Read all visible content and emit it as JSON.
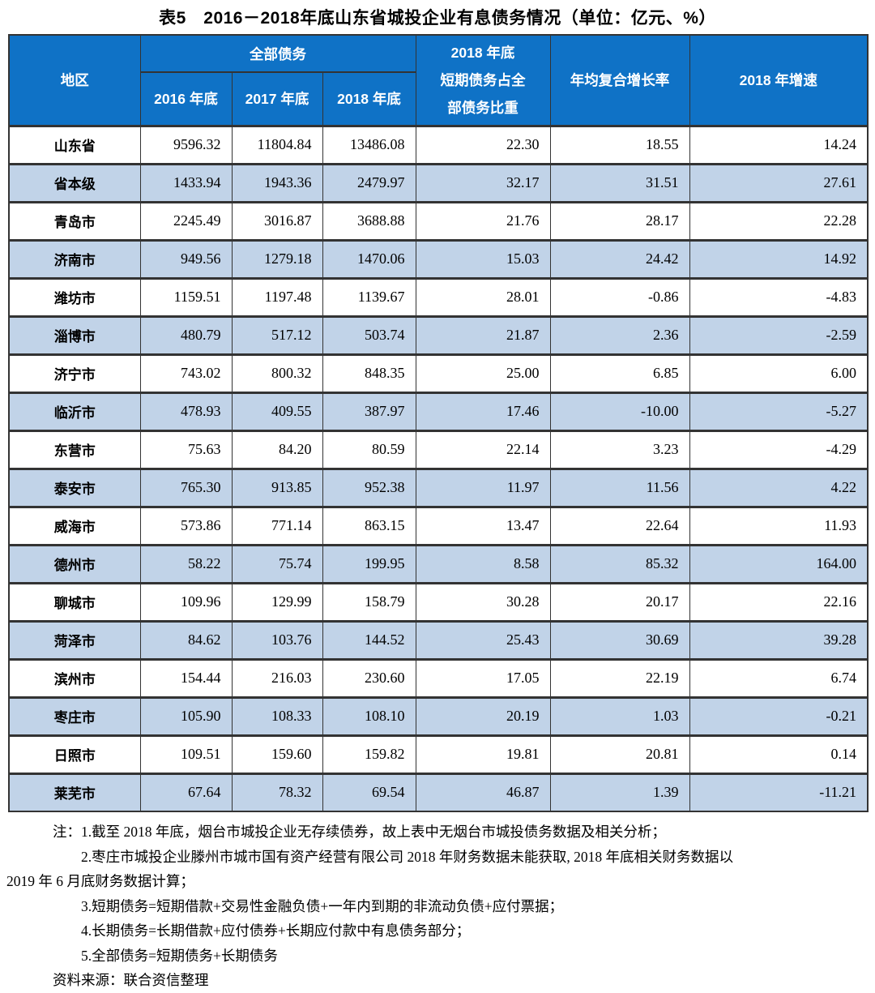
{
  "title": "表5　2016－2018年底山东省城投企业有息债务情况（单位：亿元、%）",
  "colors": {
    "header_bg": "#0f72c6",
    "stripe_bg": "#c1d3e8",
    "border": "#333333"
  },
  "table": {
    "header": {
      "region": "地区",
      "total_debt_group": "全部债务",
      "year_2016": "2016 年底",
      "year_2017": "2017 年底",
      "year_2018": "2018 年底",
      "short_ratio_line1": "2018 年底",
      "short_ratio_line2": "短期债务占全",
      "short_ratio_line3": "部债务比重",
      "cagr": "年均复合增长率",
      "growth_2018": "2018 年增速"
    },
    "rows": [
      [
        "山东省",
        "9596.32",
        "11804.84",
        "13486.08",
        "22.30",
        "18.55",
        "14.24"
      ],
      [
        "省本级",
        "1433.94",
        "1943.36",
        "2479.97",
        "32.17",
        "31.51",
        "27.61"
      ],
      [
        "青岛市",
        "2245.49",
        "3016.87",
        "3688.88",
        "21.76",
        "28.17",
        "22.28"
      ],
      [
        "济南市",
        "949.56",
        "1279.18",
        "1470.06",
        "15.03",
        "24.42",
        "14.92"
      ],
      [
        "潍坊市",
        "1159.51",
        "1197.48",
        "1139.67",
        "28.01",
        "-0.86",
        "-4.83"
      ],
      [
        "淄博市",
        "480.79",
        "517.12",
        "503.74",
        "21.87",
        "2.36",
        "-2.59"
      ],
      [
        "济宁市",
        "743.02",
        "800.32",
        "848.35",
        "25.00",
        "6.85",
        "6.00"
      ],
      [
        "临沂市",
        "478.93",
        "409.55",
        "387.97",
        "17.46",
        "-10.00",
        "-5.27"
      ],
      [
        "东营市",
        "75.63",
        "84.20",
        "80.59",
        "22.14",
        "3.23",
        "-4.29"
      ],
      [
        "泰安市",
        "765.30",
        "913.85",
        "952.38",
        "11.97",
        "11.56",
        "4.22"
      ],
      [
        "威海市",
        "573.86",
        "771.14",
        "863.15",
        "13.47",
        "22.64",
        "11.93"
      ],
      [
        "德州市",
        "58.22",
        "75.74",
        "199.95",
        "8.58",
        "85.32",
        "164.00"
      ],
      [
        "聊城市",
        "109.96",
        "129.99",
        "158.79",
        "30.28",
        "20.17",
        "22.16"
      ],
      [
        "菏泽市",
        "84.62",
        "103.76",
        "144.52",
        "25.43",
        "30.69",
        "39.28"
      ],
      [
        "滨州市",
        "154.44",
        "216.03",
        "230.60",
        "17.05",
        "22.19",
        "6.74"
      ],
      [
        "枣庄市",
        "105.90",
        "108.33",
        "108.10",
        "20.19",
        "1.03",
        "-0.21"
      ],
      [
        "日照市",
        "109.51",
        "159.60",
        "159.82",
        "19.81",
        "20.81",
        "0.14"
      ],
      [
        "莱芜市",
        "67.64",
        "78.32",
        "69.54",
        "46.87",
        "1.39",
        "-11.21"
      ]
    ]
  },
  "notes": [
    {
      "text": "注：1.截至 2018 年底，烟台市城投企业无存续债券，故上表中无烟台市城投债务数据及相关分析；",
      "indent": 0
    },
    {
      "text": "2.枣庄市城投企业滕州市城市国有资产经营有限公司 2018 年财务数据未能获取, 2018 年底相关财务数据以",
      "indent": 1
    },
    {
      "text": "2019 年 6 月底财务数据计算；",
      "indent": 2
    },
    {
      "text": "3.短期债务=短期借款+交易性金融负债+一年内到期的非流动负债+应付票据；",
      "indent": 1
    },
    {
      "text": "4.长期债务=长期借款+应付债券+长期应付款中有息债务部分；",
      "indent": 1
    },
    {
      "text": "5.全部债务=短期债务+长期债务",
      "indent": 1
    }
  ],
  "source": "资料来源：联合资信整理"
}
